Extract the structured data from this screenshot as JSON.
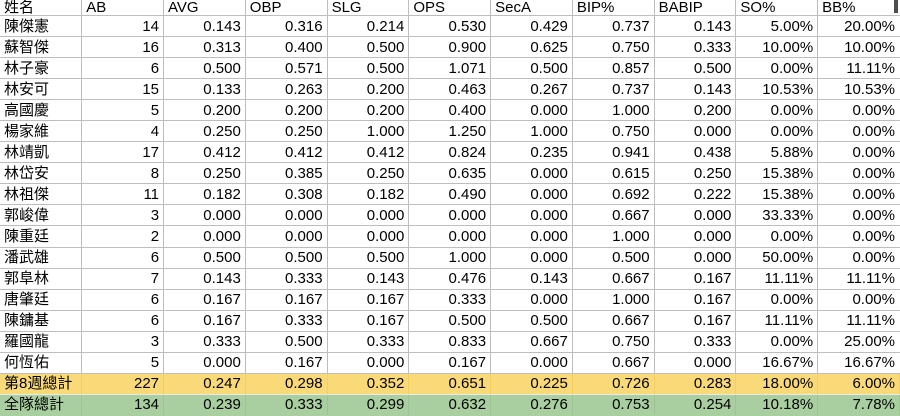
{
  "colors": {
    "week_total_bg": "#FAD978",
    "team_total_bg": "#A9CFA0",
    "gridline": "#BDBDBD",
    "text": "#000000"
  },
  "table": {
    "columns": [
      "姓名",
      "AB",
      "AVG",
      "OBP",
      "SLG",
      "OPS",
      "SecA",
      "BIP%",
      "BABIP",
      "SO%",
      "BB%"
    ],
    "players": [
      {
        "name": "陳傑憲",
        "values": [
          "14",
          "0.143",
          "0.316",
          "0.214",
          "0.530",
          "0.429",
          "0.737",
          "0.143",
          "5.00%",
          "20.00%"
        ]
      },
      {
        "name": "蘇智傑",
        "values": [
          "16",
          "0.313",
          "0.400",
          "0.500",
          "0.900",
          "0.625",
          "0.750",
          "0.333",
          "10.00%",
          "10.00%"
        ]
      },
      {
        "name": "林子豪",
        "values": [
          "6",
          "0.500",
          "0.571",
          "0.500",
          "1.071",
          "0.500",
          "0.857",
          "0.500",
          "0.00%",
          "11.11%"
        ]
      },
      {
        "name": "林安可",
        "values": [
          "15",
          "0.133",
          "0.263",
          "0.200",
          "0.463",
          "0.267",
          "0.737",
          "0.143",
          "10.53%",
          "10.53%"
        ]
      },
      {
        "name": "高國慶",
        "values": [
          "5",
          "0.200",
          "0.200",
          "0.200",
          "0.400",
          "0.000",
          "1.000",
          "0.200",
          "0.00%",
          "0.00%"
        ]
      },
      {
        "name": "楊家維",
        "values": [
          "4",
          "0.250",
          "0.250",
          "1.000",
          "1.250",
          "1.000",
          "0.750",
          "0.000",
          "0.00%",
          "0.00%"
        ]
      },
      {
        "name": "林靖凱",
        "values": [
          "17",
          "0.412",
          "0.412",
          "0.412",
          "0.824",
          "0.235",
          "0.941",
          "0.438",
          "5.88%",
          "0.00%"
        ]
      },
      {
        "name": "林岱安",
        "values": [
          "8",
          "0.250",
          "0.385",
          "0.250",
          "0.635",
          "0.000",
          "0.615",
          "0.250",
          "15.38%",
          "0.00%"
        ]
      },
      {
        "name": "林祖傑",
        "values": [
          "11",
          "0.182",
          "0.308",
          "0.182",
          "0.490",
          "0.000",
          "0.692",
          "0.222",
          "15.38%",
          "0.00%"
        ]
      },
      {
        "name": "郭峻偉",
        "values": [
          "3",
          "0.000",
          "0.000",
          "0.000",
          "0.000",
          "0.000",
          "0.667",
          "0.000",
          "33.33%",
          "0.00%"
        ]
      },
      {
        "name": "陳重廷",
        "values": [
          "2",
          "0.000",
          "0.000",
          "0.000",
          "0.000",
          "0.000",
          "1.000",
          "0.000",
          "0.00%",
          "0.00%"
        ]
      },
      {
        "name": "潘武雄",
        "values": [
          "6",
          "0.500",
          "0.500",
          "0.500",
          "1.000",
          "0.000",
          "0.500",
          "0.000",
          "50.00%",
          "0.00%"
        ]
      },
      {
        "name": "郭阜林",
        "values": [
          "7",
          "0.143",
          "0.333",
          "0.143",
          "0.476",
          "0.143",
          "0.667",
          "0.167",
          "11.11%",
          "11.11%"
        ]
      },
      {
        "name": "唐肇廷",
        "values": [
          "6",
          "0.167",
          "0.167",
          "0.167",
          "0.333",
          "0.000",
          "1.000",
          "0.167",
          "0.00%",
          "0.00%"
        ]
      },
      {
        "name": "陳鏞基",
        "values": [
          "6",
          "0.167",
          "0.333",
          "0.167",
          "0.500",
          "0.500",
          "0.667",
          "0.167",
          "11.11%",
          "11.11%"
        ]
      },
      {
        "name": "羅國龍",
        "values": [
          "3",
          "0.333",
          "0.500",
          "0.333",
          "0.833",
          "0.667",
          "0.750",
          "0.333",
          "0.00%",
          "25.00%"
        ]
      },
      {
        "name": "何恆佑",
        "values": [
          "5",
          "0.000",
          "0.167",
          "0.000",
          "0.167",
          "0.000",
          "0.667",
          "0.000",
          "16.67%",
          "16.67%"
        ]
      }
    ],
    "totals": [
      {
        "label": "第8週總計",
        "kind": "week",
        "values": [
          "227",
          "0.247",
          "0.298",
          "0.352",
          "0.651",
          "0.225",
          "0.726",
          "0.283",
          "18.00%",
          "6.00%"
        ]
      },
      {
        "label": "全隊總計",
        "kind": "team",
        "values": [
          "134",
          "0.239",
          "0.333",
          "0.299",
          "0.632",
          "0.276",
          "0.753",
          "0.254",
          "10.18%",
          "7.78%"
        ]
      }
    ]
  }
}
